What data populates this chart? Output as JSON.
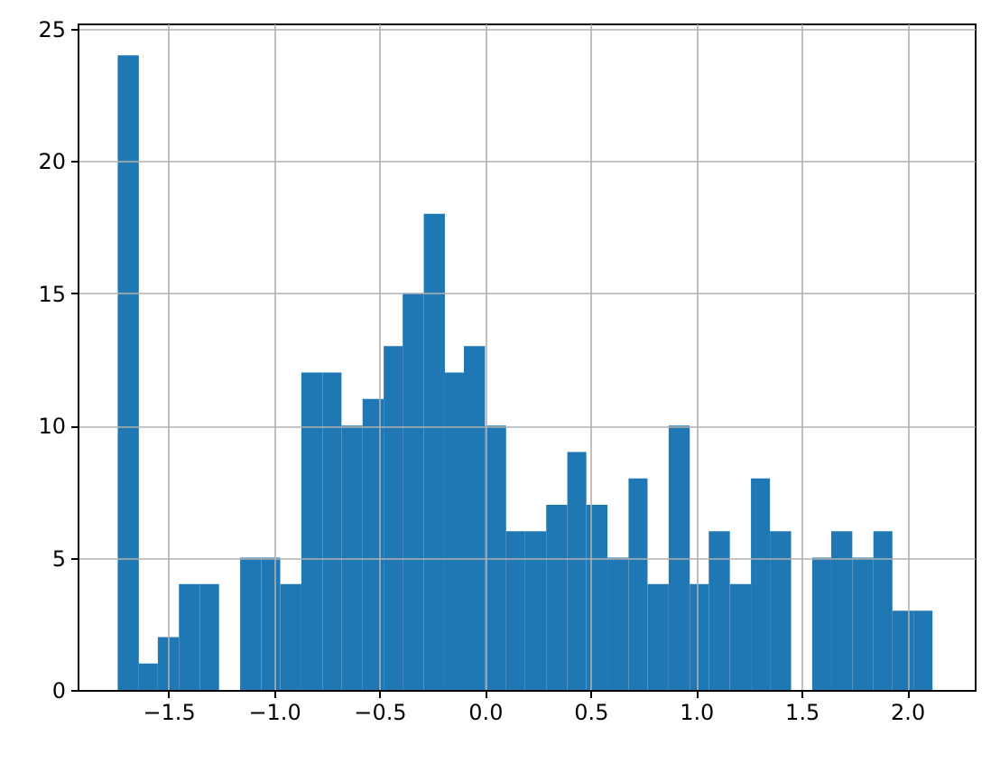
{
  "chart_data": {
    "type": "histogram",
    "bins": [
      -1.74,
      -1.64,
      -1.55,
      -1.45,
      -1.35,
      -1.26,
      -1.16,
      -1.06,
      -0.97,
      -0.87,
      -0.77,
      -0.68,
      -0.58,
      -0.48,
      -0.39,
      -0.29,
      -0.19,
      -0.1,
      0.0,
      0.1,
      0.19,
      0.29,
      0.39,
      0.48,
      0.58,
      0.68,
      0.77,
      0.87,
      0.97,
      1.06,
      1.16,
      1.26,
      1.35,
      1.45,
      1.55,
      1.64,
      1.74,
      1.84,
      1.93,
      2.03,
      2.12
    ],
    "values": [
      24,
      1,
      2,
      4,
      4,
      0,
      5,
      5,
      4,
      12,
      12,
      10,
      11,
      13,
      15,
      18,
      12,
      13,
      10,
      6,
      6,
      7,
      9,
      7,
      5,
      8,
      4,
      10,
      4,
      6,
      4,
      8,
      6,
      0,
      5,
      6,
      5,
      6,
      3,
      3
    ],
    "color": "#1f77b4",
    "xlim": [
      -1.93,
      2.32
    ],
    "ylim": [
      0,
      25.2
    ],
    "xticks": [
      {
        "value": -1.5,
        "label": "−1.5"
      },
      {
        "value": -1.0,
        "label": "−1.0"
      },
      {
        "value": -0.5,
        "label": "−0.5"
      },
      {
        "value": 0,
        "label": "0.0"
      },
      {
        "value": 0.5,
        "label": "0.5"
      },
      {
        "value": 1,
        "label": "1.0"
      },
      {
        "value": 1.5,
        "label": "1.5"
      },
      {
        "value": 2,
        "label": "2.0"
      }
    ],
    "yticks": [
      0,
      5,
      10,
      15,
      20,
      25
    ],
    "grid": true
  }
}
